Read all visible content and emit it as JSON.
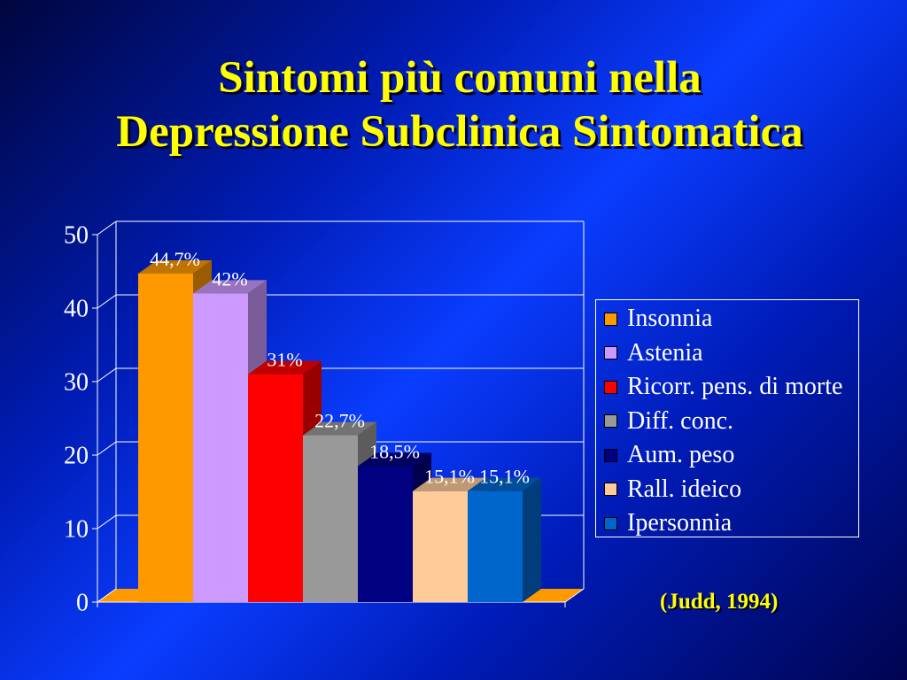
{
  "slide": {
    "title_line1": "Sintomi più comuni nella",
    "title_line2": "Depressione Subclinica Sintomatica",
    "citation": "(Judd, 1994)",
    "title_color": "#FFFF00"
  },
  "chart_data": {
    "type": "bar",
    "style": "3d",
    "ylim": [
      0,
      50
    ],
    "yticks": [
      0,
      10,
      20,
      30,
      40,
      50
    ],
    "grid": true,
    "legend": "right",
    "floor_color": "#FF9900",
    "series": [
      {
        "name": "Insonnia",
        "value": 44.7,
        "label": "44,7%",
        "color": "#FF9900"
      },
      {
        "name": "Astenia",
        "value": 42,
        "label": "42%",
        "color": "#CC99FF"
      },
      {
        "name": "Ricorr. pens. di morte",
        "value": 31,
        "label": "31%",
        "color": "#FF0000"
      },
      {
        "name": "Diff. conc.",
        "value": 22.7,
        "label": "22,7%",
        "color": "#999999"
      },
      {
        "name": "Aum. peso",
        "value": 18.5,
        "label": "18,5%",
        "color": "#000080"
      },
      {
        "name": "Rall. ideico",
        "value": 15.1,
        "label": "15,1%",
        "color": "#FFCC99"
      },
      {
        "name": "Ipersonnia",
        "value": 15.1,
        "label": "15,1%",
        "color": "#0066CC"
      }
    ]
  }
}
